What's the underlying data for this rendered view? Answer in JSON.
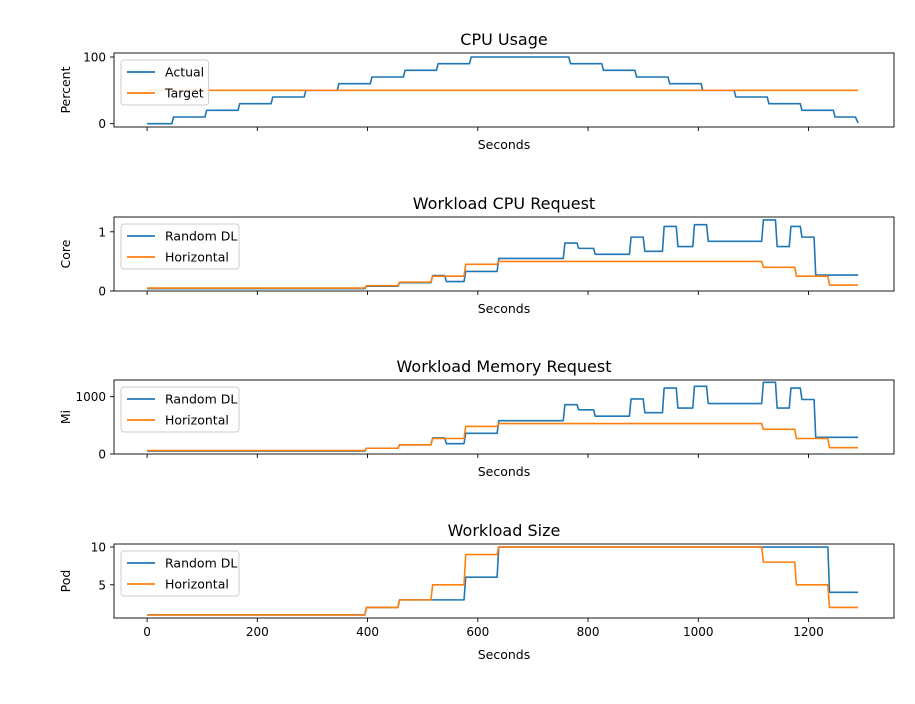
{
  "chart_data": [
    {
      "type": "line",
      "title": "CPU Usage",
      "xlabel": "Seconds",
      "ylabel": "Percent",
      "xlim": [
        -60,
        1355
      ],
      "ylim": [
        -5,
        106
      ],
      "yticks": [
        0,
        100
      ],
      "xticks": [
        0,
        200,
        400,
        600,
        800,
        1000,
        1200
      ],
      "show_xticklabels": false,
      "legend": "upper-left",
      "series": [
        {
          "name": "Actual",
          "color": "#1f77b4",
          "x": [
            0,
            45,
            48,
            105,
            108,
            165,
            168,
            225,
            228,
            285,
            288,
            345,
            348,
            405,
            408,
            465,
            468,
            525,
            528,
            585,
            588,
            645,
            648,
            705,
            708,
            765,
            768,
            825,
            828,
            885,
            888,
            945,
            948,
            1005,
            1008,
            1065,
            1068,
            1125,
            1128,
            1185,
            1188,
            1245,
            1248,
            1285,
            1290
          ],
          "y": [
            0,
            0,
            10,
            10,
            20,
            20,
            30,
            30,
            40,
            40,
            50,
            50,
            60,
            60,
            70,
            70,
            80,
            80,
            90,
            90,
            100,
            100,
            100,
            100,
            100,
            100,
            90,
            90,
            80,
            80,
            70,
            70,
            60,
            60,
            50,
            50,
            40,
            40,
            30,
            30,
            20,
            20,
            10,
            10,
            1
          ]
        },
        {
          "name": "Target",
          "color": "#ff7f0e",
          "x": [
            0,
            1290
          ],
          "y": [
            50,
            50
          ]
        }
      ]
    },
    {
      "type": "line",
      "title": "Workload CPU Request",
      "xlabel": "Seconds",
      "ylabel": "Core",
      "xlim": [
        -60,
        1355
      ],
      "ylim": [
        0,
        1.25
      ],
      "yticks": [
        0,
        1
      ],
      "xticks": [
        0,
        200,
        400,
        600,
        800,
        1000,
        1200
      ],
      "show_xticklabels": false,
      "legend": "upper-left",
      "series": [
        {
          "name": "Random DL",
          "color": "#1f77b4",
          "x": [
            0,
            395,
            398,
            455,
            458,
            515,
            518,
            540,
            543,
            575,
            578,
            635,
            638,
            755,
            758,
            780,
            783,
            810,
            813,
            875,
            878,
            900,
            903,
            930,
            933,
            935,
            938,
            960,
            963,
            990,
            993,
            1015,
            1018,
            1115,
            1118,
            1140,
            1143,
            1165,
            1168,
            1185,
            1188,
            1210,
            1213,
            1235,
            1238,
            1290
          ],
          "y": [
            0.04,
            0.04,
            0.08,
            0.08,
            0.14,
            0.14,
            0.26,
            0.26,
            0.16,
            0.16,
            0.33,
            0.33,
            0.55,
            0.55,
            0.81,
            0.81,
            0.72,
            0.72,
            0.62,
            0.62,
            0.91,
            0.91,
            0.67,
            0.67,
            0.67,
            0.67,
            1.09,
            1.09,
            0.75,
            0.75,
            1.12,
            1.12,
            0.84,
            0.84,
            1.2,
            1.2,
            0.75,
            0.75,
            1.09,
            1.09,
            0.91,
            0.91,
            0.27,
            0.27,
            0.27,
            0.27
          ]
        },
        {
          "name": "Horizontal",
          "color": "#ff7f0e",
          "x": [
            0,
            395,
            398,
            455,
            458,
            515,
            518,
            575,
            578,
            635,
            638,
            1115,
            1118,
            1175,
            1178,
            1235,
            1238,
            1290
          ],
          "y": [
            0.05,
            0.05,
            0.09,
            0.09,
            0.15,
            0.15,
            0.25,
            0.25,
            0.45,
            0.45,
            0.5,
            0.5,
            0.4,
            0.4,
            0.25,
            0.25,
            0.1,
            0.1
          ]
        }
      ]
    },
    {
      "type": "line",
      "title": "Workload Memory Request",
      "xlabel": "Seconds",
      "ylabel": "Mi",
      "xlim": [
        -60,
        1355
      ],
      "ylim": [
        0,
        1290
      ],
      "yticks": [
        0,
        1000
      ],
      "xticks": [
        0,
        200,
        400,
        600,
        800,
        1000,
        1200
      ],
      "show_xticklabels": false,
      "legend": "upper-left",
      "series": [
        {
          "name": "Random DL",
          "color": "#1f77b4",
          "x": [
            0,
            395,
            398,
            455,
            458,
            515,
            518,
            540,
            543,
            575,
            578,
            635,
            638,
            755,
            758,
            780,
            783,
            810,
            813,
            875,
            878,
            900,
            903,
            930,
            933,
            935,
            938,
            960,
            963,
            990,
            993,
            1015,
            1018,
            1115,
            1118,
            1140,
            1143,
            1165,
            1168,
            1185,
            1188,
            1210,
            1213,
            1235,
            1238,
            1290
          ],
          "y": [
            50,
            50,
            100,
            100,
            160,
            160,
            280,
            280,
            180,
            180,
            360,
            360,
            580,
            580,
            860,
            860,
            770,
            770,
            660,
            660,
            960,
            960,
            720,
            720,
            720,
            720,
            1150,
            1150,
            800,
            800,
            1180,
            1180,
            880,
            880,
            1250,
            1250,
            800,
            800,
            1150,
            1150,
            950,
            950,
            290,
            290,
            290,
            290
          ]
        },
        {
          "name": "Horizontal",
          "color": "#ff7f0e",
          "x": [
            0,
            395,
            398,
            455,
            458,
            515,
            518,
            575,
            578,
            635,
            638,
            1115,
            1118,
            1175,
            1178,
            1235,
            1238,
            1290
          ],
          "y": [
            60,
            60,
            100,
            100,
            160,
            160,
            270,
            270,
            480,
            480,
            530,
            530,
            430,
            430,
            270,
            270,
            110,
            110
          ]
        }
      ]
    },
    {
      "type": "line",
      "title": "Workload Size",
      "xlabel": "Seconds",
      "ylabel": "Pod",
      "xlim": [
        -60,
        1355
      ],
      "ylim": [
        0.6,
        10.4
      ],
      "yticks": [
        5,
        10
      ],
      "xticks": [
        0,
        200,
        400,
        600,
        800,
        1000,
        1200
      ],
      "show_xticklabels": true,
      "legend": "upper-left",
      "series": [
        {
          "name": "Random DL",
          "color": "#1f77b4",
          "x": [
            0,
            395,
            398,
            455,
            458,
            575,
            578,
            635,
            638,
            1235,
            1238,
            1290
          ],
          "y": [
            1,
            1,
            2,
            2,
            3,
            3,
            6,
            6,
            10,
            10,
            4,
            4
          ]
        },
        {
          "name": "Horizontal",
          "color": "#ff7f0e",
          "x": [
            0,
            395,
            398,
            455,
            458,
            515,
            518,
            575,
            578,
            635,
            638,
            1115,
            1118,
            1175,
            1178,
            1235,
            1238,
            1290
          ],
          "y": [
            1,
            1,
            2,
            2,
            3,
            3,
            5,
            5,
            9,
            9,
            10,
            10,
            8,
            8,
            5,
            5,
            2,
            2
          ]
        }
      ]
    }
  ]
}
